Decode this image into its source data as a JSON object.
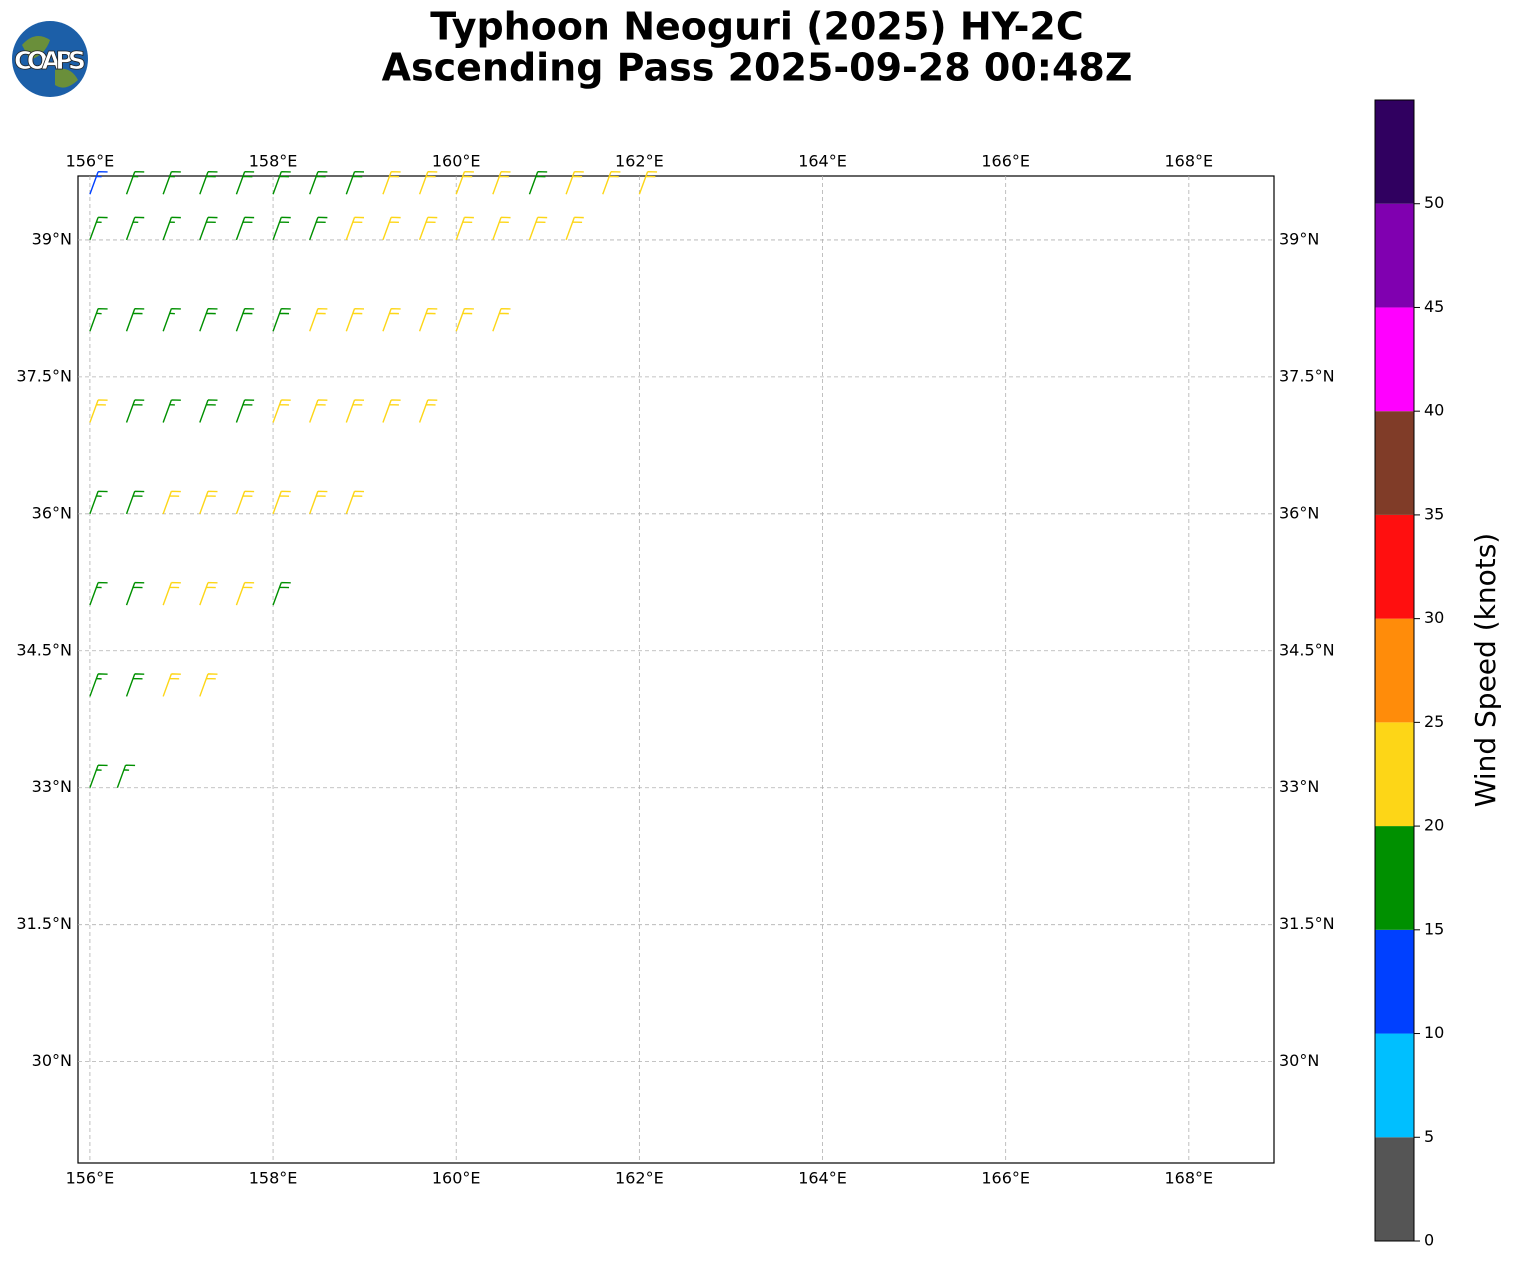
{
  "chart_data": {
    "type": "barb",
    "title": "Typhoon Neoguri (2025) HY-2C",
    "subtitle": "Ascending Pass 2025-09-28 00:48Z",
    "logo_text": "COAPS",
    "xlim": [
      155.87,
      168.93
    ],
    "ylim": [
      28.89,
      39.7
    ],
    "xticks": [
      {
        "value": 156,
        "label": "156°E"
      },
      {
        "value": 158,
        "label": "158°E"
      },
      {
        "value": 160,
        "label": "160°E"
      },
      {
        "value": 162,
        "label": "162°E"
      },
      {
        "value": 164,
        "label": "164°E"
      },
      {
        "value": 166,
        "label": "166°E"
      },
      {
        "value": 168,
        "label": "168°E"
      }
    ],
    "yticks": [
      {
        "value": 30,
        "label": "30°N"
      },
      {
        "value": 31.5,
        "label": "31.5°N"
      },
      {
        "value": 33,
        "label": "33°N"
      },
      {
        "value": 34.5,
        "label": "34.5°N"
      },
      {
        "value": 36,
        "label": "36°N"
      },
      {
        "value": 37.5,
        "label": "37.5°N"
      },
      {
        "value": 39,
        "label": "39°N"
      }
    ],
    "grid": true,
    "barb_direction": 20,
    "barbs": {
      "lon": [
        156.0,
        156.3,
        156.0,
        156.4,
        156.8,
        157.2,
        156.0,
        156.4,
        156.8,
        157.2,
        157.6,
        158.0,
        156.0,
        156.4,
        156.8,
        157.2,
        157.6,
        158.0,
        158.4,
        158.8,
        156.0,
        156.4,
        156.8,
        157.2,
        157.6,
        158.0,
        158.4,
        158.8,
        159.2,
        159.6,
        156.0,
        156.4,
        156.8,
        157.2,
        157.6,
        158.0,
        158.4,
        158.8,
        159.2,
        159.6,
        160.0,
        160.4,
        156.0,
        156.4,
        156.8,
        157.2,
        157.6,
        158.0,
        158.4,
        158.8,
        159.2,
        159.6,
        160.0,
        160.4,
        160.8,
        161.2,
        156.0,
        156.4,
        156.8,
        157.2,
        157.6,
        158.0,
        158.4,
        158.8,
        159.2,
        159.6,
        160.0,
        160.4,
        160.8,
        161.2,
        161.6,
        162.0
      ],
      "lat": [
        33,
        33,
        34,
        34,
        34,
        34,
        35,
        35,
        35,
        35,
        35,
        35,
        36,
        36,
        36,
        36,
        36,
        36,
        36,
        36,
        37,
        37,
        37,
        37,
        37,
        37,
        37,
        37,
        37,
        37,
        38,
        38,
        38,
        38,
        38,
        38,
        38,
        38,
        38,
        38,
        38,
        38,
        39,
        39,
        39,
        39,
        39,
        39,
        39,
        39,
        39,
        39,
        39,
        39,
        39,
        39,
        39.5,
        39.5,
        39.5,
        39.5,
        39.5,
        39.5,
        39.5,
        39.5,
        39.5,
        39.5,
        39.5,
        39.5,
        39.5,
        39.5,
        39.5,
        39.5
      ],
      "speed": [
        17,
        16,
        17,
        18,
        22,
        21,
        16,
        18,
        21,
        22,
        21,
        19,
        17,
        18,
        21,
        22,
        22,
        21,
        22,
        21,
        21,
        18,
        17,
        18,
        19,
        21,
        22,
        22,
        21,
        22,
        17,
        18,
        17,
        18,
        18,
        19,
        21,
        22,
        22,
        21,
        22,
        21,
        16,
        17,
        17,
        18,
        18,
        19,
        19,
        21,
        22,
        22,
        21,
        22,
        21,
        22,
        13,
        16,
        17,
        18,
        18,
        19,
        19,
        18,
        21,
        22,
        22,
        21,
        18,
        21,
        22,
        21
      ]
    },
    "colorbar": {
      "label": "Wind Speed (knots)",
      "lim": [
        0,
        55
      ],
      "bounds": [
        0,
        5,
        10,
        15,
        20,
        25,
        30,
        35,
        40,
        45,
        50,
        55
      ],
      "colors": [
        "#555555",
        "#00bfff",
        "#0040ff",
        "#009000",
        "#fdd617",
        "#ff8c0a",
        "#ff0f0f",
        "#803c28",
        "#ff00ff",
        "#8000b0",
        "#300060"
      ],
      "ticks": [
        0,
        5,
        10,
        15,
        20,
        25,
        30,
        35,
        40,
        45,
        50
      ]
    }
  }
}
